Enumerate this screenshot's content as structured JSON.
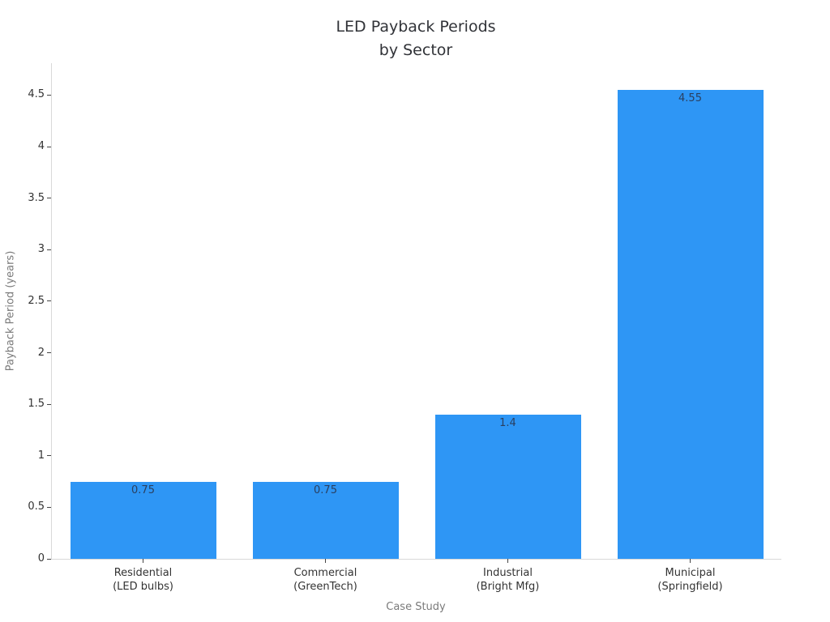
{
  "chart_data": {
    "type": "bar",
    "title": "LED Payback Periods by Sector",
    "title_lines": [
      "LED Payback Periods",
      "by Sector"
    ],
    "xlabel": "Case Study",
    "ylabel": "Payback Period (years)",
    "categories": [
      {
        "line1": "Residential",
        "line2": "(LED bulbs)"
      },
      {
        "line1": "Commercial",
        "line2": "(GreenTech)"
      },
      {
        "line1": "Industrial",
        "line2": "(Bright Mfg)"
      },
      {
        "line1": "Municipal",
        "line2": "(Springfield)"
      }
    ],
    "values": [
      0.75,
      0.75,
      1.4,
      4.55
    ],
    "value_labels": [
      "0.75",
      "0.75",
      "1.4",
      "4.55"
    ],
    "yticks": [
      "0",
      "0.5",
      "1",
      "1.5",
      "2",
      "2.5",
      "3",
      "3.5",
      "4",
      "4.5"
    ],
    "ylim": [
      0,
      4.81
    ],
    "bar_width_frac": 0.8,
    "grid": false,
    "legend": false,
    "colors": {
      "bar": "#2E96F5",
      "value_label": "#2a3f5f",
      "tick_label": "#333333",
      "axis_title": "#7a7a7a",
      "axis_line": "#d9d9d9",
      "tick_mark": "#444444",
      "title": "#313338",
      "background": "#ffffff"
    }
  }
}
